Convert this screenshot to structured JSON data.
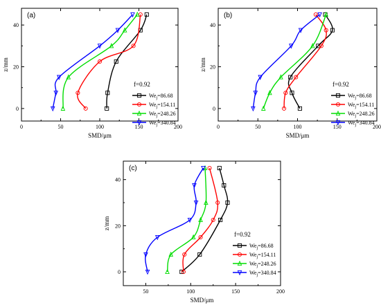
{
  "chart_data": [
    {
      "type": "line",
      "panel_label": "(a)",
      "xlabel": "SMD/μm",
      "ylabel": "z/mm",
      "xlim": [
        0,
        200
      ],
      "ylim": [
        -6,
        48
      ],
      "xticks": [
        "0",
        "50",
        "100",
        "150",
        "200"
      ],
      "yticks": [
        "0",
        "20",
        "40"
      ],
      "legend_title": "f=0.92",
      "series": [
        {
          "name": "We",
          "subscript": "j",
          "value_label": "=86.68",
          "color": "#000000",
          "marker": "square",
          "points": [
            {
              "x": 109,
              "z": 0
            },
            {
              "x": 110,
              "z": 7.5
            },
            {
              "x": 121,
              "z": 22.5
            },
            {
              "x": 152,
              "z": 37.5
            },
            {
              "x": 160,
              "z": 45
            }
          ]
        },
        {
          "name": "We",
          "subscript": "j",
          "value_label": "=154.11",
          "color": "#ff0000",
          "marker": "circle",
          "points": [
            {
              "x": 82,
              "z": 0
            },
            {
              "x": 72,
              "z": 7.5
            },
            {
              "x": 100,
              "z": 22.5
            },
            {
              "x": 143,
              "z": 30
            },
            {
              "x": 152,
              "z": 45
            }
          ]
        },
        {
          "name": "We",
          "subscript": "j",
          "value_label": "=248.26",
          "color": "#00dd00",
          "marker": "triangle-up",
          "points": [
            {
              "x": 53,
              "z": 0
            },
            {
              "x": 60,
              "z": 15
            },
            {
              "x": 115,
              "z": 30
            },
            {
              "x": 132,
              "z": 37.5
            },
            {
              "x": 148,
              "z": 45
            }
          ]
        },
        {
          "name": "We",
          "subscript": "j",
          "value_label": "=340.84",
          "color": "#0000ff",
          "marker": "triangle-down",
          "points": [
            {
              "x": 40,
              "z": 0
            },
            {
              "x": 44,
              "z": 7.5
            },
            {
              "x": 48,
              "z": 15
            },
            {
              "x": 100,
              "z": 30
            },
            {
              "x": 123,
              "z": 37.5
            },
            {
              "x": 142,
              "z": 45
            }
          ]
        }
      ]
    },
    {
      "type": "line",
      "panel_label": "(b)",
      "xlabel": "SMD/μm",
      "ylabel": "z/mm",
      "xlim": [
        0,
        200
      ],
      "ylim": [
        -6,
        48
      ],
      "xticks": [
        "0",
        "50",
        "100",
        "150",
        "200"
      ],
      "yticks": [
        "0",
        "20",
        "40"
      ],
      "legend_title": "f=0.92",
      "series": [
        {
          "name": "We",
          "subscript": "j",
          "value_label": "=86.68",
          "color": "#000000",
          "marker": "square",
          "points": [
            {
              "x": 103,
              "z": 0
            },
            {
              "x": 93,
              "z": 7.5
            },
            {
              "x": 91,
              "z": 15
            },
            {
              "x": 126,
              "z": 30
            },
            {
              "x": 144,
              "z": 37.5
            },
            {
              "x": 135,
              "z": 45
            }
          ]
        },
        {
          "name": "We",
          "subscript": "j",
          "value_label": "=154.11",
          "color": "#ff0000",
          "marker": "circle",
          "points": [
            {
              "x": 83,
              "z": 0
            },
            {
              "x": 85,
              "z": 7.5
            },
            {
              "x": 98,
              "z": 15
            },
            {
              "x": 130,
              "z": 30
            },
            {
              "x": 136,
              "z": 37.5
            },
            {
              "x": 123,
              "z": 45
            }
          ]
        },
        {
          "name": "We",
          "subscript": "j",
          "value_label": "=248.26",
          "color": "#00dd00",
          "marker": "triangle-up",
          "points": [
            {
              "x": 57,
              "z": 0
            },
            {
              "x": 65,
              "z": 7.5
            },
            {
              "x": 79,
              "z": 15
            },
            {
              "x": 119,
              "z": 30
            },
            {
              "x": 136,
              "z": 45
            }
          ]
        },
        {
          "name": "We",
          "subscript": "j",
          "value_label": "=340.84",
          "color": "#0000ff",
          "marker": "triangle-down",
          "points": [
            {
              "x": 44,
              "z": 0
            },
            {
              "x": 47,
              "z": 7.5
            },
            {
              "x": 53,
              "z": 15
            },
            {
              "x": 92,
              "z": 30
            },
            {
              "x": 104,
              "z": 37.5
            },
            {
              "x": 128,
              "z": 45
            }
          ]
        }
      ]
    },
    {
      "type": "line",
      "panel_label": "(c)",
      "xlabel": "SMD/μm",
      "ylabel": "z/mm",
      "xlim": [
        25,
        200
      ],
      "ylim": [
        -6,
        48
      ],
      "xticks": [
        "50",
        "100",
        "150",
        "200"
      ],
      "xtick_values": [
        50,
        100,
        150,
        200
      ],
      "yticks": [
        "0",
        "20",
        "40"
      ],
      "legend_title": "f=0.92",
      "series": [
        {
          "name": "We",
          "subscript": "j",
          "value_label": "=86.68",
          "color": "#000000",
          "marker": "square",
          "points": [
            {
              "x": 90,
              "z": 0
            },
            {
              "x": 110,
              "z": 7.5
            },
            {
              "x": 133,
              "z": 22.5
            },
            {
              "x": 141,
              "z": 30
            },
            {
              "x": 137,
              "z": 37.5
            },
            {
              "x": 132,
              "z": 45
            }
          ]
        },
        {
          "name": "We",
          "subscript": "j",
          "value_label": "=154.11",
          "color": "#ff0000",
          "marker": "circle",
          "points": [
            {
              "x": 92,
              "z": 0
            },
            {
              "x": 93,
              "z": 7.5
            },
            {
              "x": 111,
              "z": 15
            },
            {
              "x": 125,
              "z": 22.5
            },
            {
              "x": 130,
              "z": 30
            },
            {
              "x": 121,
              "z": 45
            }
          ]
        },
        {
          "name": "We",
          "subscript": "j",
          "value_label": "=248.26",
          "color": "#00dd00",
          "marker": "triangle-up",
          "points": [
            {
              "x": 74,
              "z": 0
            },
            {
              "x": 78,
              "z": 7.5
            },
            {
              "x": 103,
              "z": 15
            },
            {
              "x": 111,
              "z": 22.5
            },
            {
              "x": 117,
              "z": 30
            },
            {
              "x": 116,
              "z": 45
            }
          ]
        },
        {
          "name": "We",
          "subscript": "j",
          "value_label": "=340.84",
          "color": "#0000ff",
          "marker": "triangle-down",
          "points": [
            {
              "x": 52,
              "z": 0
            },
            {
              "x": 50,
              "z": 7.5
            },
            {
              "x": 63,
              "z": 15
            },
            {
              "x": 99,
              "z": 22.5
            },
            {
              "x": 106,
              "z": 30
            },
            {
              "x": 104,
              "z": 37.5
            },
            {
              "x": 114,
              "z": 45
            }
          ]
        }
      ]
    }
  ]
}
